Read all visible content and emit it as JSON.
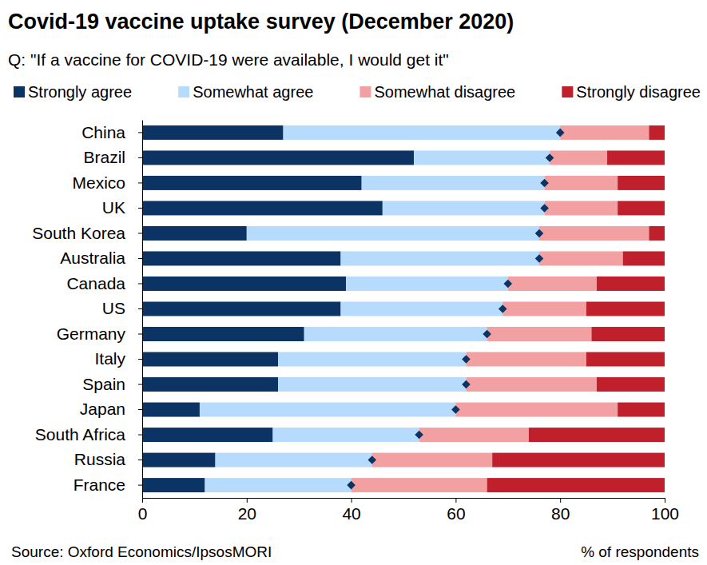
{
  "chart_data": {
    "type": "bar",
    "orientation": "horizontal",
    "stacked": true,
    "grid": false,
    "legend": "top",
    "title": "Covid-19 vaccine uptake survey (December 2020)",
    "subtitle": "Q: \"If a vaccine for COVID-19 were available, I would get it\"",
    "x_label": "% of respondents",
    "source": "Source: Oxford Economics/IpsosMORI",
    "categories": [
      "China",
      "Brazil",
      "Mexico",
      "UK",
      "South Korea",
      "Australia",
      "Canada",
      "US",
      "Germany",
      "Italy",
      "Spain",
      "Japan",
      "South Africa",
      "Russia",
      "France"
    ],
    "series": [
      {
        "name": "Strongly agree",
        "color": "#0b3363",
        "values": [
          27,
          52,
          42,
          46,
          20,
          38,
          39,
          38,
          31,
          26,
          26,
          11,
          25,
          14,
          12
        ]
      },
      {
        "name": "Somewhat agree",
        "color": "#b6dbfc",
        "marker": "diamond",
        "values": [
          53,
          26,
          35,
          31,
          56,
          38,
          31,
          31,
          35,
          36,
          36,
          49,
          28,
          30,
          28
        ]
      },
      {
        "name": "Somewhat disagree",
        "color": "#f2a0a2",
        "values": [
          17,
          11,
          14,
          14,
          21,
          16,
          17,
          16,
          20,
          23,
          25,
          31,
          21,
          23,
          26
        ]
      },
      {
        "name": "Strongly disagree",
        "color": "#c0202b",
        "values": [
          3,
          11,
          9,
          9,
          3,
          8,
          13,
          15,
          14,
          15,
          13,
          9,
          26,
          33,
          34
        ]
      }
    ],
    "xlim": [
      0,
      100
    ],
    "xticks": [
      0,
      20,
      40,
      60,
      80,
      100
    ]
  }
}
